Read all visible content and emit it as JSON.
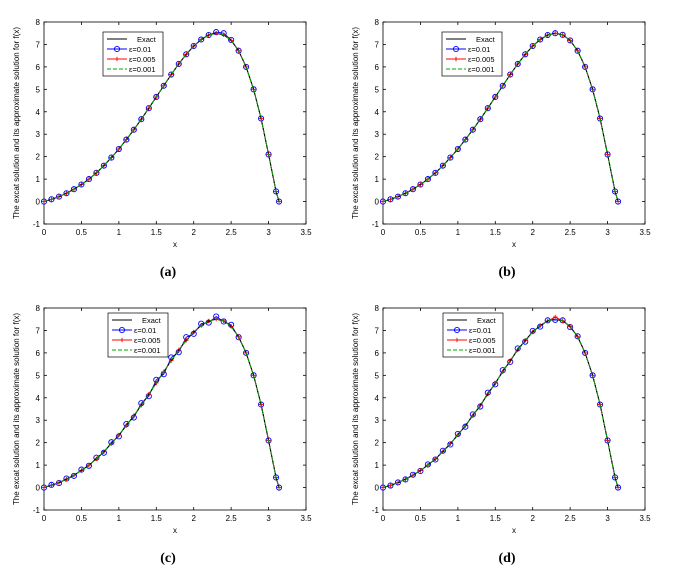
{
  "colors": {
    "exact": "#000000",
    "eps1": "#0000ff",
    "eps2": "#ff0000",
    "eps3": "#00aa00",
    "axis": "#000000"
  },
  "chart_data": [
    {
      "type": "line",
      "panel": "(a)",
      "xlabel": "x",
      "ylabel": "The excat solution and its approximate solution for f(x)",
      "xlim": [
        0,
        3.5
      ],
      "ylim": [
        -1,
        8
      ],
      "xticks": [
        "0",
        "0.5",
        "1",
        "1.5",
        "2",
        "2.5",
        "3",
        "3.5"
      ],
      "yticks": [
        "-1",
        "0",
        "1",
        "2",
        "3",
        "4",
        "5",
        "6",
        "7",
        "8"
      ],
      "legend": [
        "Exact",
        "ε=0.01",
        "ε=0.005",
        "ε=0.001"
      ],
      "legend_position": "top-left",
      "x": [
        0,
        0.1,
        0.2,
        0.3,
        0.4,
        0.5,
        0.6,
        0.7,
        0.8,
        0.9,
        1.0,
        1.1,
        1.2,
        1.3,
        1.4,
        1.5,
        1.6,
        1.7,
        1.8,
        1.9,
        2.0,
        2.1,
        2.2,
        2.3,
        2.4,
        2.5,
        2.6,
        2.7,
        2.8,
        2.9,
        3.0,
        3.1,
        3.14
      ],
      "series": [
        {
          "name": "Exact",
          "values": [
            0,
            0.1,
            0.22,
            0.37,
            0.55,
            0.76,
            1.0,
            1.28,
            1.6,
            1.96,
            2.34,
            2.76,
            3.2,
            3.67,
            4.16,
            4.66,
            5.16,
            5.66,
            6.13,
            6.56,
            6.93,
            7.22,
            7.42,
            7.5,
            7.43,
            7.18,
            6.72,
            6.0,
            5.0,
            3.7,
            2.1,
            0.45,
            0
          ]
        },
        {
          "name": "ε=0.01",
          "values": [
            0,
            0.1,
            0.22,
            0.37,
            0.55,
            0.76,
            1.0,
            1.28,
            1.6,
            1.96,
            2.34,
            2.76,
            3.2,
            3.67,
            4.16,
            4.66,
            5.16,
            5.66,
            6.13,
            6.56,
            6.93,
            7.22,
            7.42,
            7.55,
            7.5,
            7.2,
            6.72,
            6.0,
            5.0,
            3.7,
            2.1,
            0.45,
            0
          ]
        },
        {
          "name": "ε=0.005",
          "values": [
            0,
            0.1,
            0.22,
            0.37,
            0.55,
            0.76,
            1.0,
            1.28,
            1.6,
            1.96,
            2.34,
            2.76,
            3.2,
            3.67,
            4.16,
            4.66,
            5.16,
            5.66,
            6.13,
            6.56,
            6.93,
            7.22,
            7.42,
            7.5,
            7.43,
            7.18,
            6.72,
            6.0,
            5.0,
            3.7,
            2.1,
            0.45,
            0
          ]
        },
        {
          "name": "ε=0.001",
          "values": [
            0,
            0.1,
            0.22,
            0.37,
            0.55,
            0.76,
            1.0,
            1.28,
            1.6,
            1.96,
            2.34,
            2.76,
            3.2,
            3.67,
            4.16,
            4.66,
            5.16,
            5.66,
            6.13,
            6.56,
            6.93,
            7.22,
            7.42,
            7.5,
            7.43,
            7.18,
            6.72,
            6.0,
            5.0,
            3.7,
            2.1,
            0.45,
            0
          ]
        }
      ]
    },
    {
      "type": "line",
      "panel": "(b)",
      "xlabel": "x",
      "ylabel": "The excat solution and its approximate solution for f(x)",
      "xlim": [
        0,
        3.5
      ],
      "ylim": [
        -1,
        8
      ],
      "xticks": [
        "0",
        "0.5",
        "1",
        "1.5",
        "2",
        "2.5",
        "3",
        "3.5"
      ],
      "yticks": [
        "-1",
        "0",
        "1",
        "2",
        "3",
        "4",
        "5",
        "6",
        "7",
        "8"
      ],
      "legend": [
        "Exact",
        "ε=0.01",
        "ε=0.005",
        "ε=0.001"
      ],
      "legend_position": "top-left",
      "x": [
        0,
        0.1,
        0.2,
        0.3,
        0.4,
        0.5,
        0.6,
        0.7,
        0.8,
        0.9,
        1.0,
        1.1,
        1.2,
        1.3,
        1.4,
        1.5,
        1.6,
        1.7,
        1.8,
        1.9,
        2.0,
        2.1,
        2.2,
        2.3,
        2.4,
        2.5,
        2.6,
        2.7,
        2.8,
        2.9,
        3.0,
        3.1,
        3.14
      ],
      "series": [
        {
          "name": "Exact",
          "values": [
            0,
            0.1,
            0.22,
            0.37,
            0.55,
            0.76,
            1.0,
            1.28,
            1.6,
            1.96,
            2.34,
            2.76,
            3.2,
            3.67,
            4.16,
            4.66,
            5.16,
            5.66,
            6.13,
            6.56,
            6.93,
            7.22,
            7.42,
            7.5,
            7.43,
            7.18,
            6.72,
            6.0,
            5.0,
            3.7,
            2.1,
            0.45,
            0
          ]
        },
        {
          "name": "ε=0.01",
          "values": [
            0,
            0.1,
            0.22,
            0.37,
            0.55,
            0.76,
            1.0,
            1.28,
            1.6,
            1.96,
            2.34,
            2.76,
            3.2,
            3.67,
            4.16,
            4.66,
            5.16,
            5.66,
            6.13,
            6.56,
            6.93,
            7.22,
            7.42,
            7.5,
            7.43,
            7.18,
            6.72,
            6.0,
            5.0,
            3.7,
            2.1,
            0.45,
            0
          ]
        },
        {
          "name": "ε=0.005",
          "values": [
            0,
            0.1,
            0.22,
            0.37,
            0.55,
            0.76,
            1.0,
            1.28,
            1.6,
            1.96,
            2.34,
            2.76,
            3.2,
            3.67,
            4.16,
            4.66,
            5.16,
            5.66,
            6.13,
            6.56,
            6.93,
            7.22,
            7.42,
            7.5,
            7.43,
            7.18,
            6.72,
            6.0,
            5.0,
            3.7,
            2.1,
            0.45,
            0
          ]
        },
        {
          "name": "ε=0.001",
          "values": [
            0,
            0.1,
            0.22,
            0.37,
            0.55,
            0.76,
            1.0,
            1.28,
            1.6,
            1.96,
            2.34,
            2.76,
            3.2,
            3.67,
            4.16,
            4.66,
            5.16,
            5.66,
            6.13,
            6.56,
            6.93,
            7.22,
            7.42,
            7.5,
            7.43,
            7.18,
            6.72,
            6.0,
            5.0,
            3.7,
            2.1,
            0.45,
            0
          ]
        }
      ]
    },
    {
      "type": "line",
      "panel": "(c)",
      "xlabel": "x",
      "ylabel": "The excat solution and its approximate solution for f(x)",
      "xlim": [
        0,
        3.5
      ],
      "ylim": [
        -1,
        8
      ],
      "xticks": [
        "0",
        "0.5",
        "1",
        "1.5",
        "2",
        "2.5",
        "3",
        "3.5"
      ],
      "yticks": [
        "-1",
        "0",
        "1",
        "2",
        "3",
        "4",
        "5",
        "6",
        "7",
        "8"
      ],
      "legend": [
        "Exact",
        "ε=0.01",
        "ε=0.005",
        "ε=0.001"
      ],
      "legend_position": "top-center",
      "x": [
        0,
        0.1,
        0.2,
        0.3,
        0.4,
        0.5,
        0.6,
        0.7,
        0.8,
        0.9,
        1.0,
        1.1,
        1.2,
        1.3,
        1.4,
        1.5,
        1.6,
        1.7,
        1.8,
        1.9,
        2.0,
        2.1,
        2.2,
        2.3,
        2.4,
        2.5,
        2.6,
        2.7,
        2.8,
        2.9,
        3.0,
        3.1,
        3.14
      ],
      "series": [
        {
          "name": "Exact",
          "values": [
            0,
            0.1,
            0.22,
            0.37,
            0.55,
            0.76,
            1.0,
            1.28,
            1.6,
            1.96,
            2.34,
            2.76,
            3.2,
            3.67,
            4.16,
            4.66,
            5.16,
            5.66,
            6.13,
            6.56,
            6.93,
            7.22,
            7.42,
            7.5,
            7.43,
            7.18,
            6.72,
            6.0,
            5.0,
            3.7,
            2.1,
            0.45,
            0
          ]
        },
        {
          "name": "ε=0.01",
          "values": [
            0,
            0.12,
            0.2,
            0.4,
            0.52,
            0.8,
            0.97,
            1.33,
            1.55,
            2.02,
            2.28,
            2.83,
            3.12,
            3.76,
            4.07,
            4.8,
            5.05,
            5.8,
            6.03,
            6.7,
            6.85,
            7.3,
            7.35,
            7.62,
            7.4,
            7.25,
            6.7,
            6.0,
            5.0,
            3.7,
            2.1,
            0.45,
            0
          ]
        },
        {
          "name": "ε=0.005",
          "values": [
            0,
            0.1,
            0.22,
            0.37,
            0.55,
            0.76,
            1.0,
            1.28,
            1.6,
            1.96,
            2.34,
            2.76,
            3.2,
            3.67,
            4.16,
            4.66,
            5.16,
            5.66,
            6.13,
            6.56,
            6.93,
            7.22,
            7.42,
            7.5,
            7.43,
            7.18,
            6.72,
            6.0,
            5.0,
            3.7,
            2.1,
            0.45,
            0
          ]
        },
        {
          "name": "ε=0.001",
          "values": [
            0,
            0.1,
            0.22,
            0.37,
            0.55,
            0.76,
            1.0,
            1.28,
            1.6,
            1.96,
            2.34,
            2.76,
            3.2,
            3.67,
            4.16,
            4.66,
            5.16,
            5.66,
            6.13,
            6.56,
            6.93,
            7.22,
            7.42,
            7.5,
            7.43,
            7.18,
            6.72,
            6.0,
            5.0,
            3.7,
            2.1,
            0.45,
            0
          ]
        }
      ]
    },
    {
      "type": "line",
      "panel": "(d)",
      "xlabel": "x",
      "ylabel": "The excat solution and its approximate solution for f(x)",
      "xlim": [
        0,
        3.5
      ],
      "ylim": [
        -1,
        8
      ],
      "xticks": [
        "0",
        "0.5",
        "1",
        "1.5",
        "2",
        "2.5",
        "3",
        "3.5"
      ],
      "yticks": [
        "-1",
        "0",
        "1",
        "2",
        "3",
        "4",
        "5",
        "6",
        "7",
        "8"
      ],
      "legend": [
        "Exact",
        "ε=0.01",
        "ε=0.005",
        "ε=0.001"
      ],
      "legend_position": "top-left",
      "x": [
        0,
        0.1,
        0.2,
        0.3,
        0.4,
        0.5,
        0.6,
        0.7,
        0.8,
        0.9,
        1.0,
        1.1,
        1.2,
        1.3,
        1.4,
        1.5,
        1.6,
        1.7,
        1.8,
        1.9,
        2.0,
        2.1,
        2.2,
        2.3,
        2.4,
        2.5,
        2.6,
        2.7,
        2.8,
        2.9,
        3.0,
        3.1,
        3.14
      ],
      "series": [
        {
          "name": "Exact",
          "values": [
            0,
            0.1,
            0.22,
            0.37,
            0.55,
            0.76,
            1.0,
            1.28,
            1.6,
            1.96,
            2.34,
            2.76,
            3.2,
            3.67,
            4.16,
            4.66,
            5.16,
            5.66,
            6.13,
            6.56,
            6.93,
            7.22,
            7.42,
            7.5,
            7.43,
            7.18,
            6.72,
            6.0,
            5.0,
            3.7,
            2.1,
            0.45,
            0
          ]
        },
        {
          "name": "ε=0.01",
          "values": [
            0,
            0.09,
            0.23,
            0.36,
            0.57,
            0.74,
            1.03,
            1.25,
            1.64,
            1.92,
            2.39,
            2.71,
            3.26,
            3.61,
            4.23,
            4.6,
            5.23,
            5.6,
            6.2,
            6.5,
            6.98,
            7.17,
            7.45,
            7.47,
            7.45,
            7.15,
            6.74,
            6.0,
            5.0,
            3.7,
            2.1,
            0.45,
            0
          ]
        },
        {
          "name": "ε=0.005",
          "values": [
            0,
            0.1,
            0.22,
            0.37,
            0.55,
            0.76,
            1.0,
            1.28,
            1.6,
            1.96,
            2.34,
            2.76,
            3.2,
            3.67,
            4.16,
            4.66,
            5.16,
            5.66,
            6.13,
            6.56,
            6.93,
            7.22,
            7.42,
            7.6,
            7.43,
            7.18,
            6.72,
            6.0,
            5.0,
            3.7,
            2.1,
            0.45,
            0
          ]
        },
        {
          "name": "ε=0.001",
          "values": [
            0,
            0.1,
            0.22,
            0.37,
            0.55,
            0.76,
            1.0,
            1.28,
            1.6,
            1.96,
            2.34,
            2.76,
            3.2,
            3.67,
            4.16,
            4.66,
            5.16,
            5.66,
            6.13,
            6.56,
            6.93,
            7.22,
            7.42,
            7.5,
            7.43,
            7.18,
            6.72,
            6.0,
            5.0,
            3.7,
            2.1,
            0.45,
            0
          ]
        }
      ]
    }
  ]
}
